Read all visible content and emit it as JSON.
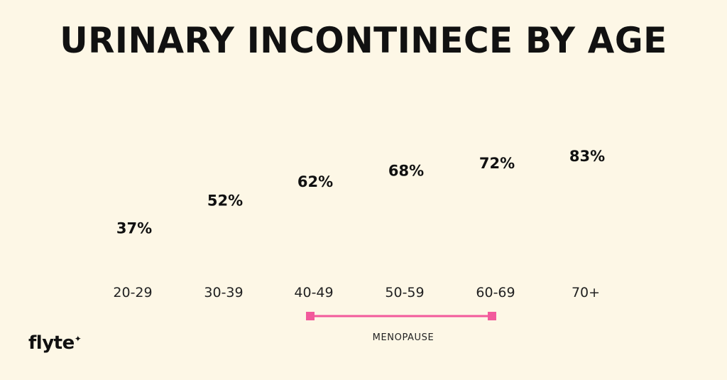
{
  "title": "URINARY INCONTINECE BY AGE",
  "colors": {
    "background": "#fdf7e6",
    "unaffected": "#fbbd0e",
    "affected": "#f25a9c",
    "text": "#111111"
  },
  "chart_data": {
    "type": "pictograph",
    "title": "URINARY INCONTINECE BY AGE",
    "categories": [
      "20-29",
      "30-39",
      "40-49",
      "50-59",
      "60-69",
      "70+"
    ],
    "values": [
      37,
      52,
      62,
      68,
      72,
      83
    ],
    "value_labels": [
      "37%",
      "52%",
      "62%",
      "68%",
      "72%",
      "83%"
    ],
    "unit": "%",
    "annotation": {
      "label": "MENOPAUSE",
      "from": "40-49",
      "to": "60-69"
    }
  },
  "footer": {
    "logo_text": "flyte",
    "logo_icon": "sparkle-icon"
  }
}
